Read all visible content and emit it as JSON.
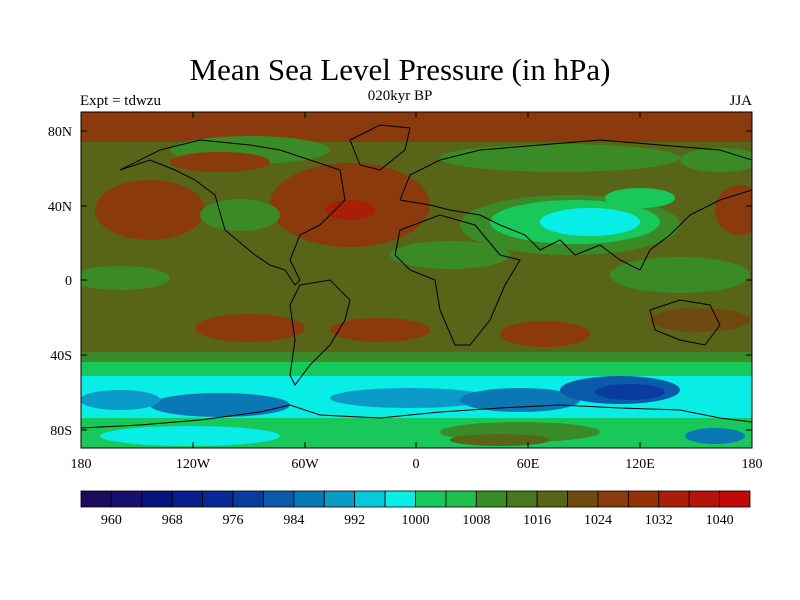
{
  "title": "Mean Sea Level Pressure (in hPa)",
  "subtitle": "020kyr BP",
  "left_label": "Expt = tdwzu",
  "right_label": "JJA",
  "chart_data": {
    "type": "heatmap",
    "title": "Mean Sea Level Pressure (in hPa)",
    "x_ticks": [
      "180",
      "120W",
      "60W",
      "0",
      "60E",
      "120E",
      "180"
    ],
    "y_ticks": [
      "80N",
      "40N",
      "0",
      "40S",
      "80S"
    ],
    "xlim": [
      -180,
      180
    ],
    "ylim": [
      -90,
      90
    ],
    "colorbar": {
      "levels": [
        956,
        960,
        964,
        968,
        972,
        976,
        980,
        984,
        988,
        992,
        996,
        1000,
        1004,
        1008,
        1012,
        1016,
        1020,
        1024,
        1028,
        1032,
        1036,
        1040,
        1044
      ],
      "tick_labels": [
        "960",
        "968",
        "976",
        "984",
        "992",
        "1000",
        "1008",
        "1016",
        "1024",
        "1032",
        "1040"
      ],
      "colors": [
        "#1c0a5a",
        "#18106e",
        "#0a1480",
        "#081e8c",
        "#082896",
        "#0a3ca0",
        "#0a5aaa",
        "#0a78b4",
        "#0a9ac8",
        "#08c8dc",
        "#08eee6",
        "#18c85a",
        "#20be4a",
        "#3a8a28",
        "#4a7620",
        "#586418",
        "#6e4a10",
        "#8a3a0c",
        "#963008",
        "#aa1e08",
        "#b41408",
        "#c00a08"
      ]
    }
  }
}
